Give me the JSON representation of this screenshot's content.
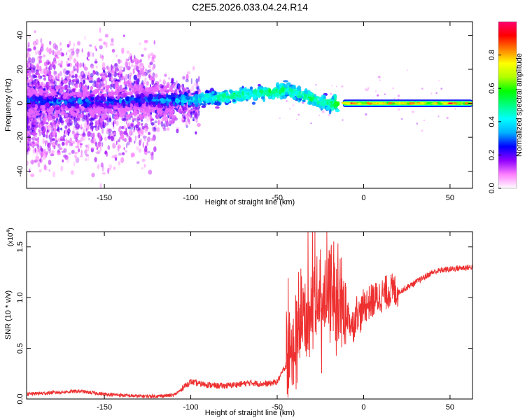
{
  "title": "C2E5.2026.033.04.24.R14",
  "chart_data": [
    {
      "type": "heatmap",
      "xlabel": "Height of straight line (km)",
      "ylabel": "Frequency (Hz)",
      "xlim": [
        -195,
        63
      ],
      "ylim": [
        -50,
        48
      ],
      "xticks": [
        -150,
        -100,
        -50,
        0,
        50
      ],
      "yticks": [
        -40,
        -20,
        0,
        20,
        40
      ],
      "grid": false,
      "colorbar": {
        "label": "Normalized spectral amplitude",
        "range": [
          0.0,
          1.0
        ],
        "ticks": [
          0.0,
          0.2,
          0.4,
          0.6,
          0.8
        ],
        "tick_labels": [
          "0.0",
          "0.2",
          "0.4",
          "0.6",
          "0.8"
        ],
        "colors": [
          "#ffffff",
          "#ff80ff",
          "#9000ff",
          "#0000ff",
          "#00b0ff",
          "#00ffff",
          "#00ff80",
          "#00ff00",
          "#b0ff00",
          "#ffff00",
          "#ff8000",
          "#ff0000",
          "#ff0070"
        ]
      },
      "ridge": {
        "x": [
          -195,
          -175,
          -150,
          -125,
          -110,
          -100,
          -90,
          -80,
          -70,
          -60,
          -50,
          -45,
          -40,
          -35,
          -30,
          -25,
          -20,
          -15,
          -12,
          0,
          20,
          40,
          62
        ],
        "y": [
          1,
          1,
          1,
          2,
          2,
          2,
          3,
          4,
          5,
          6,
          7,
          8,
          6,
          5,
          3,
          1,
          0,
          0,
          0,
          0,
          0,
          0,
          0
        ],
        "amplitude": [
          0.3,
          0.3,
          0.3,
          0.3,
          0.35,
          0.4,
          0.45,
          0.5,
          0.5,
          0.5,
          0.55,
          0.5,
          0.5,
          0.5,
          0.55,
          0.5,
          0.5,
          0.6,
          0.9,
          0.95,
          0.95,
          0.95,
          0.95
        ]
      }
    },
    {
      "type": "line",
      "xlabel": "Height of straight line (km)",
      "ylabel": "SNR (10 * v/v)",
      "y_multiplier_label": "(x10",
      "y_multiplier_exp": "4",
      "y_multiplier_close": ")",
      "xlim": [
        -195,
        63
      ],
      "ylim": [
        0,
        1.65
      ],
      "xticks": [
        -150,
        -100,
        -50,
        0,
        50
      ],
      "yticks": [
        0.0,
        0.5,
        1.0,
        1.5
      ],
      "ytick_labels": [
        "0.0",
        "0.5",
        "1.0",
        "1.5"
      ],
      "grid": false,
      "series": [
        {
          "color": "#ee3030",
          "x": [
            -195,
            -185,
            -175,
            -165,
            -160,
            -150,
            -140,
            -130,
            -120,
            -110,
            -105,
            -100,
            -95,
            -90,
            -85,
            -80,
            -75,
            -70,
            -65,
            -60,
            -55,
            -50,
            -45,
            -42,
            -40,
            -38,
            -35,
            -32,
            -30,
            -28,
            -26,
            -24,
            -22,
            -20,
            -18,
            -16,
            -14,
            -12,
            -10,
            -8,
            -6,
            -4,
            -2,
            0,
            5,
            10,
            15,
            20,
            25,
            30,
            35,
            40,
            45,
            50,
            55,
            62
          ],
          "y": [
            0.03,
            0.04,
            0.05,
            0.06,
            0.05,
            0.03,
            0.02,
            0.01,
            0.01,
            0.02,
            0.08,
            0.14,
            0.12,
            0.11,
            0.1,
            0.1,
            0.11,
            0.12,
            0.13,
            0.12,
            0.12,
            0.14,
            0.3,
            0.25,
            0.4,
            0.55,
            0.7,
            0.65,
            0.7,
            1.05,
            0.8,
            0.75,
            0.9,
            0.85,
            1.05,
            0.75,
            0.9,
            0.7,
            0.85,
            0.75,
            0.7,
            0.85,
            0.8,
            0.9,
            0.95,
            1.0,
            1.05,
            1.05,
            1.1,
            1.15,
            1.2,
            1.25,
            1.27,
            1.28,
            1.29,
            1.3
          ]
        }
      ]
    }
  ]
}
